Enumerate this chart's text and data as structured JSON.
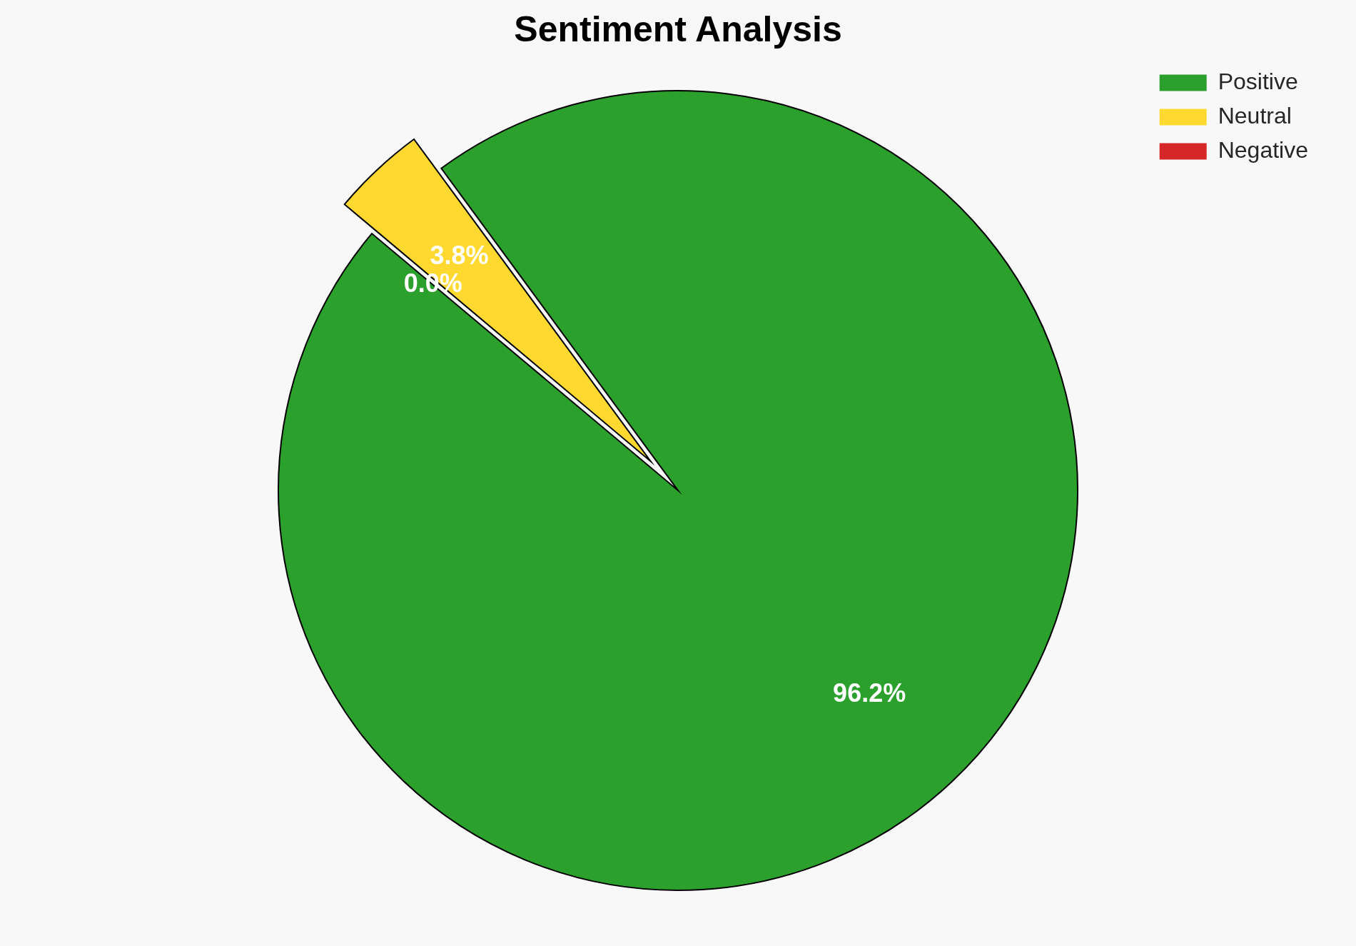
{
  "chart_data": {
    "type": "pie",
    "title": "Sentiment Analysis",
    "categories": [
      "Positive",
      "Neutral",
      "Negative"
    ],
    "values": [
      96.2,
      3.8,
      0.0
    ],
    "colors": [
      "#2ca02c",
      "#ffd92f",
      "#d62728"
    ],
    "value_labels": [
      "96.2%",
      "3.8%",
      "0.0%"
    ],
    "legend": "top right"
  }
}
